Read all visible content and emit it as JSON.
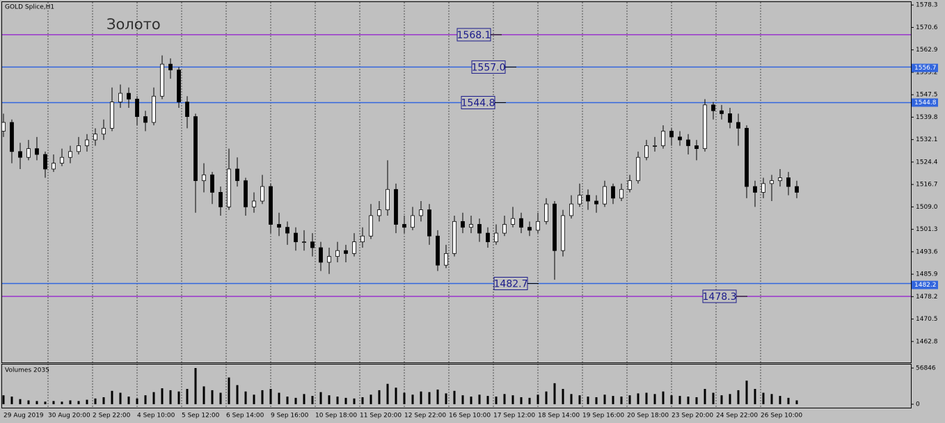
{
  "chart_data": [
    {
      "type": "candlestick",
      "symbol": "GOLD Splice,H1",
      "title": "Золото",
      "bull_color": "#ffffff",
      "bear_color": "#000000",
      "background": "#c0c0c0",
      "grid": true,
      "ylim": [
        1455.6,
        1579.3
      ],
      "yticks": [
        1578.3,
        1570.6,
        1562.9,
        1555.2,
        1547.5,
        1539.8,
        1532.1,
        1524.4,
        1516.7,
        {
          "value": 1509,
          "label": "1509.0"
        },
        1501.3,
        1493.6,
        1485.9,
        1478.2,
        1470.5,
        1462.8
      ],
      "x_labels": [
        "29 Aug 2019",
        "30 Aug 20:00",
        "2 Sep 22:00",
        "4 Sep 10:00",
        "5 Sep 12:00",
        "6 Sep 14:00",
        "9 Sep 16:00",
        "10 Sep 18:00",
        "11 Sep 20:00",
        "12 Sep 22:00",
        "16 Sep 10:00",
        "17 Sep 12:00",
        "18 Sep 14:00",
        "19 Sep 16:00",
        "20 Sep 18:00",
        "23 Sep 20:00",
        "24 Sep 22:00",
        "26 Sep 10:00"
      ],
      "levels": [
        {
          "value": 1568.1,
          "color": "#9933cc"
        },
        {
          "value": 1557,
          "label": "1557.0",
          "color": "#3366dd"
        },
        {
          "value": 1544.8,
          "color": "#3366dd"
        },
        {
          "value": 1482.7,
          "color": "#3366dd"
        },
        {
          "value": 1478.3,
          "color": "#9933cc"
        }
      ],
      "axis_markers": [
        {
          "value": 1556.7,
          "color": "#3366dd"
        },
        {
          "value": 1544.8,
          "color": "#3366dd"
        },
        {
          "value": 1482.2,
          "color": "#3366dd"
        }
      ],
      "candles": [
        [
          1535,
          1541,
          1533,
          1538
        ],
        [
          1538,
          1539,
          1524,
          1528
        ],
        [
          1528,
          1531,
          1522,
          1526
        ],
        [
          1526,
          1532,
          1525,
          1529
        ],
        [
          1529,
          1533,
          1525,
          1527
        ],
        [
          1527,
          1528,
          1519,
          1522
        ],
        [
          1522,
          1527,
          1521,
          1524
        ],
        [
          1524,
          1529,
          1523,
          1526
        ],
        [
          1526,
          1530,
          1524,
          1528
        ],
        [
          1528,
          1533,
          1527,
          1530
        ],
        [
          1530,
          1534,
          1528,
          1532
        ],
        [
          1532,
          1536,
          1530,
          1534
        ],
        [
          1534,
          1539,
          1532,
          1536
        ],
        [
          1536,
          1550,
          1535,
          1545
        ],
        [
          1545,
          1551,
          1543,
          1548
        ],
        [
          1548,
          1550,
          1543,
          1546
        ],
        [
          1546,
          1547,
          1537,
          1540
        ],
        [
          1540,
          1542,
          1535,
          1538
        ],
        [
          1538,
          1550,
          1537,
          1547
        ],
        [
          1547,
          1561,
          1546,
          1558
        ],
        [
          1558,
          1560,
          1553,
          1556
        ],
        [
          1556,
          1557,
          1543,
          1545
        ],
        [
          1545,
          1547,
          1536,
          1540
        ],
        [
          1540,
          1541,
          1507,
          1518
        ],
        [
          1518,
          1524,
          1514,
          1520
        ],
        [
          1520,
          1521,
          1510,
          1514
        ],
        [
          1514,
          1516,
          1506,
          1509
        ],
        [
          1509,
          1529,
          1508,
          1522
        ],
        [
          1522,
          1526,
          1516,
          1518
        ],
        [
          1518,
          1519,
          1506,
          1509
        ],
        [
          1509,
          1514,
          1507,
          1511
        ],
        [
          1511,
          1520,
          1510,
          1516
        ],
        [
          1516,
          1517,
          1500,
          1503
        ],
        [
          1503,
          1507,
          1499,
          1502
        ],
        [
          1502,
          1504,
          1496,
          1500
        ],
        [
          1500,
          1502,
          1494,
          1497
        ],
        [
          1497,
          1501,
          1494,
          1497
        ],
        [
          1497,
          1500,
          1492,
          1495
        ],
        [
          1495,
          1497,
          1487,
          1490
        ],
        [
          1490,
          1495,
          1486,
          1492
        ],
        [
          1492,
          1497,
          1490,
          1494
        ],
        [
          1494,
          1496,
          1490,
          1493
        ],
        [
          1493,
          1500,
          1492,
          1497
        ],
        [
          1497,
          1502,
          1495,
          1499
        ],
        [
          1499,
          1510,
          1498,
          1506
        ],
        [
          1506,
          1511,
          1504,
          1508
        ],
        [
          1508,
          1525,
          1506,
          1515
        ],
        [
          1515,
          1517,
          1500,
          1503
        ],
        [
          1503,
          1506,
          1500,
          1502
        ],
        [
          1502,
          1509,
          1501,
          1506
        ],
        [
          1506,
          1511,
          1504,
          1508
        ],
        [
          1508,
          1510,
          1496,
          1499
        ],
        [
          1499,
          1501,
          1487,
          1489
        ],
        [
          1489,
          1496,
          1488,
          1493
        ],
        [
          1493,
          1506,
          1492,
          1504
        ],
        [
          1504,
          1507,
          1500,
          1502
        ],
        [
          1502,
          1506,
          1500,
          1503
        ],
        [
          1503,
          1505,
          1497,
          1500
        ],
        [
          1500,
          1502,
          1495,
          1497
        ],
        [
          1497,
          1503,
          1496,
          1500
        ],
        [
          1500,
          1506,
          1499,
          1503
        ],
        [
          1503,
          1509,
          1502,
          1505
        ],
        [
          1505,
          1507,
          1500,
          1502
        ],
        [
          1502,
          1504,
          1499,
          1501
        ],
        [
          1501,
          1507,
          1500,
          1504
        ],
        [
          1504,
          1512,
          1503,
          1510
        ],
        [
          1510,
          1511,
          1484,
          1494
        ],
        [
          1494,
          1508,
          1492,
          1506
        ],
        [
          1506,
          1513,
          1505,
          1510
        ],
        [
          1510,
          1517,
          1509,
          1513
        ],
        [
          1513,
          1515,
          1508,
          1511
        ],
        [
          1511,
          1513,
          1507,
          1510
        ],
        [
          1510,
          1518,
          1509,
          1516
        ],
        [
          1516,
          1517,
          1510,
          1512
        ],
        [
          1512,
          1517,
          1511,
          1515
        ],
        [
          1515,
          1520,
          1514,
          1518
        ],
        [
          1518,
          1528,
          1517,
          1526
        ],
        [
          1526,
          1532,
          1525,
          1530
        ],
        [
          1530,
          1533,
          1528,
          1530
        ],
        [
          1530,
          1537,
          1529,
          1535
        ],
        [
          1535,
          1536,
          1530,
          1533
        ],
        [
          1533,
          1535,
          1530,
          1532
        ],
        [
          1532,
          1534,
          1527,
          1530
        ],
        [
          1530,
          1532,
          1525,
          1529
        ],
        [
          1529,
          1546,
          1528,
          1544
        ],
        [
          1544,
          1545,
          1539,
          1542
        ],
        [
          1542,
          1544,
          1539,
          1541
        ],
        [
          1541,
          1543,
          1536,
          1538
        ],
        [
          1538,
          1541,
          1530,
          1536
        ],
        [
          1536,
          1537,
          1512,
          1516
        ],
        [
          1516,
          1518,
          1509,
          1514
        ],
        [
          1514,
          1519,
          1512,
          1517
        ],
        [
          1517,
          1520,
          1511,
          1518
        ],
        [
          1518,
          1522,
          1516,
          1519
        ],
        [
          1519,
          1521,
          1513,
          1516
        ],
        [
          1516,
          1518,
          1512,
          1514
        ]
      ]
    },
    {
      "type": "bar",
      "title": "Volumes 2035",
      "color": "#000000",
      "ylim": [
        0,
        63400
      ],
      "yticks": [
        56846,
        0
      ],
      "values": [
        14000,
        12000,
        8000,
        6000,
        5000,
        4000,
        5000,
        4000,
        6000,
        5000,
        7000,
        9000,
        11000,
        21000,
        18000,
        12000,
        9000,
        14000,
        19000,
        25000,
        22000,
        20000,
        24000,
        56846,
        28000,
        22000,
        18000,
        42000,
        30000,
        20000,
        15000,
        22000,
        24000,
        18000,
        12000,
        10000,
        16000,
        13000,
        19000,
        14000,
        12000,
        10000,
        9000,
        11000,
        15000,
        22000,
        32000,
        26000,
        18000,
        15000,
        20000,
        19000,
        23000,
        17000,
        21000,
        14000,
        12000,
        15000,
        13000,
        12000,
        16000,
        14000,
        11000,
        10000,
        15000,
        20000,
        33000,
        24000,
        16000,
        14000,
        12000,
        11000,
        15000,
        13000,
        12000,
        14000,
        17000,
        18000,
        16000,
        20000,
        14000,
        13000,
        12000,
        11000,
        24000,
        18000,
        14000,
        16000,
        22000,
        37000,
        24000,
        18000,
        16000,
        13000,
        10000,
        6000
      ]
    }
  ]
}
